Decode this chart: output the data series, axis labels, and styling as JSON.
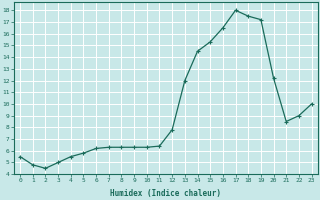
{
  "x": [
    0,
    1,
    2,
    3,
    4,
    5,
    6,
    7,
    8,
    9,
    10,
    11,
    12,
    13,
    14,
    15,
    16,
    17,
    18,
    19,
    20,
    21,
    22,
    23
  ],
  "y": [
    5.5,
    4.8,
    4.5,
    5.0,
    5.5,
    5.8,
    6.2,
    6.3,
    6.3,
    6.3,
    6.3,
    6.4,
    7.8,
    12.0,
    14.5,
    15.3,
    16.5,
    18.0,
    17.5,
    17.2,
    12.2,
    8.5,
    9.0,
    10.0
  ],
  "xlim": [
    -0.5,
    23.5
  ],
  "ylim": [
    4.0,
    18.7
  ],
  "yticks": [
    4,
    5,
    6,
    7,
    8,
    9,
    10,
    11,
    12,
    13,
    14,
    15,
    16,
    17,
    18
  ],
  "xticks": [
    0,
    1,
    2,
    3,
    4,
    5,
    6,
    7,
    8,
    9,
    10,
    11,
    12,
    13,
    14,
    15,
    16,
    17,
    18,
    19,
    20,
    21,
    22,
    23
  ],
  "xlabel": "Humidex (Indice chaleur)",
  "line_color": "#1a6b5a",
  "marker": "+",
  "bg_color": "#c8e8e8",
  "grid_color": "#ffffff",
  "title": ""
}
